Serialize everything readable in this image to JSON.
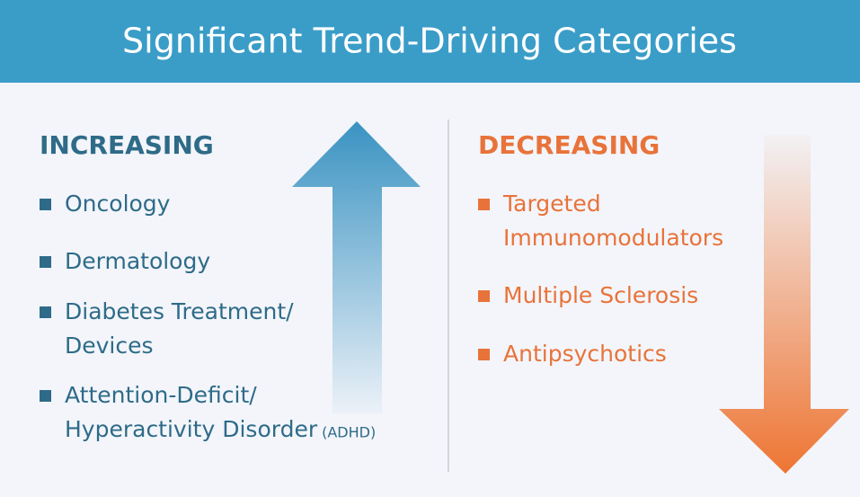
{
  "header": {
    "title": "Significant Trend-Driving Categories"
  },
  "increasing": {
    "heading": "INCREASING",
    "items": [
      {
        "lines": [
          "Oncology"
        ]
      },
      {
        "lines": [
          "Dermatology"
        ]
      },
      {
        "lines": [
          "Diabetes Treatment/",
          "Devices"
        ]
      },
      {
        "lines": [
          "Attention-Deficit/",
          "Hyperactivity Disorder"
        ],
        "note": "(ADHD)"
      }
    ]
  },
  "decreasing": {
    "heading": "DECREASING",
    "items": [
      {
        "lines": [
          "Targeted",
          "Immunomodulators"
        ]
      },
      {
        "lines": [
          "Multiple Sclerosis"
        ]
      },
      {
        "lines": [
          "Antipsychotics"
        ]
      }
    ]
  }
}
